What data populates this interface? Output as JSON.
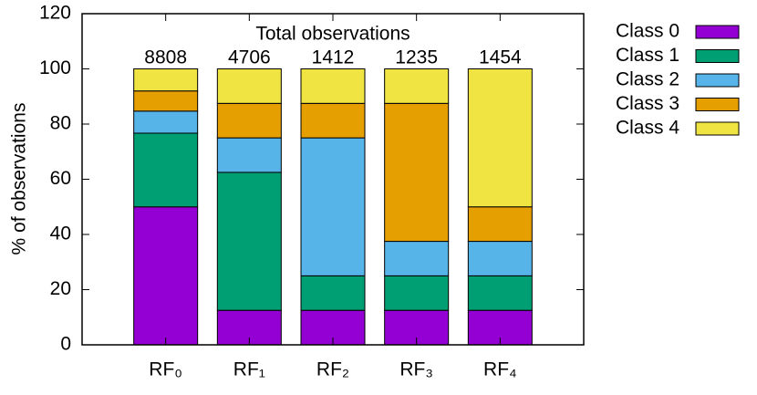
{
  "chart_data": {
    "type": "stacked_bar",
    "categories": [
      "RF₀",
      "RF₁",
      "RF₂",
      "RF₃",
      "RF₄"
    ],
    "series": [
      {
        "name": "Class 0",
        "color": "#9400d3",
        "values": [
          50,
          12.5,
          12.5,
          12.5,
          12.5
        ]
      },
      {
        "name": "Class 1",
        "color": "#009e73",
        "values": [
          26.7,
          50,
          12.5,
          12.5,
          12.5
        ]
      },
      {
        "name": "Class 2",
        "color": "#56b4e9",
        "values": [
          8,
          12.5,
          50,
          12.5,
          12.5
        ]
      },
      {
        "name": "Class 3",
        "color": "#e69f00",
        "values": [
          7.3,
          12.5,
          12.5,
          50,
          12.5
        ]
      },
      {
        "name": "Class 4",
        "color": "#f0e442",
        "values": [
          8,
          12.5,
          12.5,
          12.5,
          50
        ]
      }
    ],
    "annotation": {
      "title": "Total observations",
      "totals": [
        8808,
        4706,
        1412,
        1235,
        1454
      ]
    },
    "ylabel": "% of observations",
    "ylim": [
      0,
      120
    ],
    "yticks": [
      0,
      20,
      40,
      60,
      80,
      100,
      120
    ],
    "legend": "outside-right"
  }
}
